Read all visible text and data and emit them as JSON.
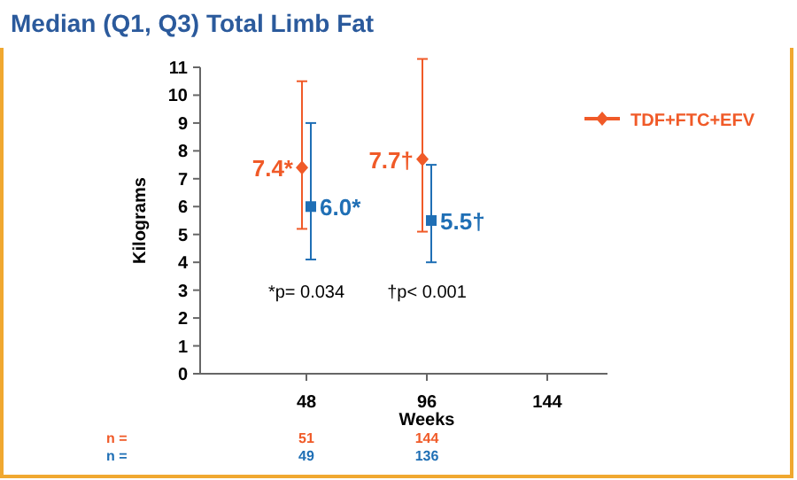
{
  "chart_data": {
    "type": "scatter",
    "title": "Median (Q1, Q3) Total Limb Fat",
    "xlabel": "Weeks",
    "ylabel": "Kilograms",
    "categories": [
      "48",
      "96",
      "144"
    ],
    "ylim": [
      0,
      11
    ],
    "yticks": [
      0,
      1,
      2,
      3,
      4,
      5,
      6,
      7,
      8,
      9,
      10,
      11
    ],
    "series": [
      {
        "name": "TDF+FTC+EFV",
        "color": "#f05a28",
        "marker": "diamond",
        "values": [
          7.4,
          7.7,
          null
        ],
        "errors": [
          [
            5.2,
            10.5
          ],
          [
            5.1,
            11.3
          ],
          null
        ],
        "value_labels": [
          "7.4*",
          "7.7†",
          null
        ]
      },
      {
        "color": "#1f6fb5",
        "marker": "square",
        "values": [
          6.0,
          5.5,
          null
        ],
        "errors": [
          [
            4.1,
            9.0
          ],
          [
            4.0,
            7.5
          ],
          null
        ],
        "value_labels": [
          "6.0*",
          "5.5†",
          null
        ]
      }
    ],
    "annotations": [
      "*p= 0.034",
      "†p< 0.001",
      "n =",
      "51",
      "144",
      "n =",
      "49",
      "136"
    ],
    "legend": "top right",
    "grid": false
  }
}
